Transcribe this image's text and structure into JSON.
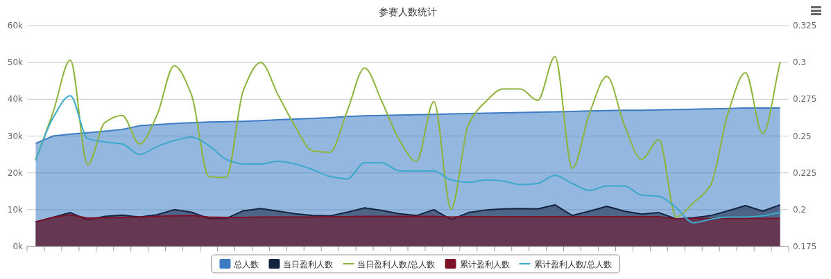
{
  "chart_data": {
    "type": "area",
    "title": "参赛人数统计",
    "categories": [
      null,
      null,
      null,
      null,
      null,
      null,
      null,
      null,
      null,
      null,
      null,
      null,
      null,
      null,
      null,
      null,
      null,
      null,
      null,
      null,
      null,
      null,
      null,
      null,
      null,
      null,
      null,
      null,
      null,
      null,
      null,
      null,
      null,
      null,
      null,
      null,
      null,
      null,
      null,
      null,
      null,
      null,
      null,
      null
    ],
    "series": [
      {
        "name": "总人数",
        "color": "#3d7cc4",
        "values": [
          28000,
          30000,
          30500,
          30900,
          31300,
          31800,
          32800,
          33100,
          33400,
          33600,
          33800,
          33900,
          34000,
          34200,
          34400,
          34600,
          34800,
          35000,
          35300,
          35500,
          35600,
          35700,
          35800,
          35900,
          36000,
          36100,
          36200,
          36300,
          36400,
          36500,
          36600,
          36700,
          36800,
          36900,
          37000,
          37000,
          37100,
          37200,
          37300,
          37400,
          37500,
          37600,
          37600,
          37600
        ]
      },
      {
        "name": "当日盈利人数",
        "color": "#14233f",
        "values": [
          6700,
          7900,
          9200,
          7200,
          8200,
          8500,
          8000,
          8600,
          10000,
          9300,
          7600,
          7600,
          9700,
          10300,
          9600,
          8900,
          8400,
          8300,
          9300,
          10500,
          9800,
          8900,
          8400,
          10000,
          7300,
          9200,
          9900,
          10200,
          10300,
          10200,
          11300,
          8400,
          9600,
          10900,
          9600,
          8800,
          9200,
          7500,
          7800,
          8400,
          9700,
          11100,
          9600,
          11300
        ]
      },
      {
        "name": "当日盈利人数/总人数",
        "type": "line",
        "axis": "y2",
        "color": "#8db43a",
        "values": [
          0.234,
          0.266,
          0.3016,
          0.2305,
          0.2593,
          0.264,
          0.2446,
          0.264,
          0.2977,
          0.278,
          0.2225,
          0.2217,
          0.2812,
          0.3,
          0.278,
          0.2563,
          0.2399,
          0.239,
          0.2671,
          0.2962,
          0.2734,
          0.2475,
          0.2328,
          0.2734,
          0.2005,
          0.2577,
          0.2734,
          0.282,
          0.282,
          0.2742,
          0.3039,
          0.2281,
          0.2657,
          0.2906,
          0.2577,
          0.2342,
          0.2475,
          0.1952,
          0.2046,
          0.217,
          0.2657,
          0.293,
          0.2516,
          0.3
        ]
      },
      {
        "name": "累计盈利人数",
        "color": "#7a1228",
        "values": [
          6700,
          7900,
          8600,
          7700,
          7800,
          7900,
          8000,
          8200,
          8300,
          8400,
          8000,
          7900,
          7900,
          8000,
          8000,
          8000,
          8000,
          8100,
          8100,
          8200,
          8200,
          8200,
          8200,
          8200,
          8000,
          8100,
          8100,
          8100,
          8100,
          8100,
          8100,
          8100,
          8100,
          8100,
          8100,
          8100,
          8100,
          7500,
          7600,
          7600,
          7600,
          7600,
          7600,
          7600
        ]
      },
      {
        "name": "累计盈利人数/总人数",
        "type": "line",
        "axis": "y2",
        "color": "#3aa9cc",
        "values": [
          0.234,
          0.2624,
          0.2774,
          0.2483,
          0.246,
          0.2446,
          0.2375,
          0.2428,
          0.2469,
          0.2493,
          0.2436,
          0.2342,
          0.231,
          0.231,
          0.2328,
          0.231,
          0.2272,
          0.2225,
          0.2209,
          0.2319,
          0.2319,
          0.2264,
          0.2262,
          0.2264,
          0.2201,
          0.2186,
          0.2201,
          0.2194,
          0.217,
          0.2178,
          0.2233,
          0.2178,
          0.213,
          0.2162,
          0.2162,
          0.2099,
          0.2091,
          0.2013,
          0.1911,
          0.1935,
          0.195,
          0.195,
          0.1958,
          0.1982
        ]
      }
    ],
    "ylim": [
      0,
      60000
    ],
    "yticks": [
      {
        "value": 0,
        "label": "0k"
      },
      {
        "value": 10000,
        "label": "10k"
      },
      {
        "value": 20000,
        "label": "20k"
      },
      {
        "value": 30000,
        "label": "30k"
      },
      {
        "value": 40000,
        "label": "40k"
      },
      {
        "value": 50000,
        "label": "50k"
      },
      {
        "value": 60000,
        "label": "60k"
      }
    ],
    "y2lim": [
      0.175,
      0.325
    ],
    "y2ticks": [
      0.175,
      0.2,
      0.225,
      0.25,
      0.275,
      0.3,
      0.325
    ],
    "grid": "y",
    "legend": "bottom"
  }
}
